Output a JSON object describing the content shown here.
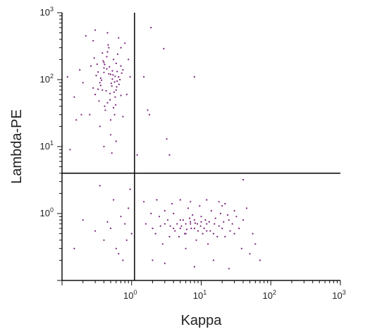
{
  "chart_data": {
    "type": "scatter",
    "title": "",
    "xlabel": "Kappa",
    "ylabel": "Lambda-PE",
    "x_scale": "log",
    "y_scale": "log",
    "xlim": [
      0.1,
      1000
    ],
    "ylim": [
      0.1,
      1000
    ],
    "x_ticks": [
      {
        "value": 1,
        "base": "10",
        "exp": "0"
      },
      {
        "value": 10,
        "base": "10",
        "exp": "1"
      },
      {
        "value": 100,
        "base": "10",
        "exp": "2"
      },
      {
        "value": 1000,
        "base": "10",
        "exp": "3"
      }
    ],
    "y_ticks": [
      {
        "value": 1,
        "base": "10",
        "exp": "0"
      },
      {
        "value": 10,
        "base": "10",
        "exp": "1"
      },
      {
        "value": 100,
        "base": "10",
        "exp": "2"
      },
      {
        "value": 1000,
        "base": "10",
        "exp": "3"
      }
    ],
    "quadrant_gate": {
      "x": 1.1,
      "y": 4
    },
    "grid": false,
    "legend": "none",
    "point_color": "#7a1f7a",
    "series": [
      {
        "points": [
          [
            0.35,
            90
          ],
          [
            0.5,
            120
          ],
          [
            0.6,
            70
          ],
          [
            0.4,
            150
          ],
          [
            0.55,
            200
          ],
          [
            0.3,
            60
          ],
          [
            0.45,
            45
          ],
          [
            0.65,
            110
          ],
          [
            0.38,
            250
          ],
          [
            0.52,
            80
          ],
          [
            0.42,
            35
          ],
          [
            0.7,
            160
          ],
          [
            0.33,
            130
          ],
          [
            0.58,
            55
          ],
          [
            0.47,
            300
          ],
          [
            0.62,
            95
          ],
          [
            0.28,
            75
          ],
          [
            0.5,
            25
          ],
          [
            0.75,
            140
          ],
          [
            0.4,
            180
          ],
          [
            0.36,
            105
          ],
          [
            0.56,
            65
          ],
          [
            0.44,
            220
          ],
          [
            0.66,
            85
          ],
          [
            0.31,
            115
          ],
          [
            0.49,
            50
          ],
          [
            0.6,
            175
          ],
          [
            0.41,
            40
          ],
          [
            0.53,
            135
          ],
          [
            0.68,
            100
          ],
          [
            0.26,
            160
          ],
          [
            0.46,
            330
          ],
          [
            0.57,
            30
          ],
          [
            0.39,
            190
          ],
          [
            0.72,
            125
          ],
          [
            0.34,
            48
          ],
          [
            0.51,
            88
          ],
          [
            0.63,
            240
          ],
          [
            0.43,
            68
          ],
          [
            0.29,
            210
          ],
          [
            0.48,
            155
          ],
          [
            0.59,
            42
          ],
          [
            0.37,
            98
          ],
          [
            0.54,
            118
          ],
          [
            0.7,
            58
          ],
          [
            0.32,
            170
          ],
          [
            0.45,
            260
          ],
          [
            0.61,
            78
          ],
          [
            0.4,
            128
          ],
          [
            0.55,
            38
          ],
          [
            0.22,
            450
          ],
          [
            0.3,
            550
          ],
          [
            0.8,
            350
          ],
          [
            0.25,
            30
          ],
          [
            0.85,
            60
          ],
          [
            0.2,
            90
          ],
          [
            0.9,
            200
          ],
          [
            0.18,
            140
          ],
          [
            0.5,
            15
          ],
          [
            0.6,
            12
          ],
          [
            0.45,
            500
          ],
          [
            0.65,
            420
          ],
          [
            0.35,
            20
          ],
          [
            0.75,
            28
          ],
          [
            0.28,
            380
          ],
          [
            0.95,
            110
          ],
          [
            0.4,
            10
          ],
          [
            0.52,
            8
          ],
          [
            0.7,
            300
          ],
          [
            0.38,
            70
          ],
          [
            0.57,
            92
          ],
          [
            0.44,
            145
          ],
          [
            0.36,
            82
          ],
          [
            0.62,
            132
          ],
          [
            0.49,
            62
          ],
          [
            0.41,
            168
          ],
          [
            0.53,
            102
          ],
          [
            0.47,
            122
          ],
          [
            0.33,
            72
          ],
          [
            0.58,
            112
          ],
          [
            0.15,
            55
          ],
          [
            0.12,
            110
          ],
          [
            0.16,
            25
          ],
          [
            0.13,
            9
          ],
          [
            0.19,
            30
          ],
          [
            1.9,
            600
          ],
          [
            2.9,
            290
          ],
          [
            3.2,
            13
          ],
          [
            3.5,
            7.5
          ],
          [
            1.5,
            110
          ],
          [
            1.8,
            30
          ],
          [
            1.7,
            35
          ],
          [
            8,
            110
          ],
          [
            1.2,
            7.5
          ],
          [
            3,
            0.7
          ],
          [
            5,
            0.6
          ],
          [
            8,
            0.8
          ],
          [
            12,
            0.7
          ],
          [
            20,
            0.6
          ],
          [
            4,
            1.0
          ],
          [
            6,
            0.5
          ],
          [
            10,
            0.9
          ],
          [
            15,
            0.5
          ],
          [
            25,
            0.8
          ],
          [
            2,
            0.6
          ],
          [
            3.5,
            0.45
          ],
          [
            7,
            0.75
          ],
          [
            9,
            0.55
          ],
          [
            14,
            1.1
          ],
          [
            18,
            0.65
          ],
          [
            30,
            0.5
          ],
          [
            2.5,
            0.9
          ],
          [
            4.5,
            0.7
          ],
          [
            6.5,
            1.2
          ],
          [
            11,
            0.6
          ],
          [
            16,
            0.85
          ],
          [
            22,
            0.45
          ],
          [
            3,
            1.1
          ],
          [
            5.5,
            0.8
          ],
          [
            8.5,
            0.4
          ],
          [
            13,
            0.75
          ],
          [
            19,
            1.0
          ],
          [
            28,
            0.7
          ],
          [
            2.2,
            0.5
          ],
          [
            4.2,
            0.55
          ],
          [
            7.5,
            0.95
          ],
          [
            10.5,
            0.5
          ],
          [
            15.5,
            0.7
          ],
          [
            24,
            0.95
          ],
          [
            35,
            0.6
          ],
          [
            1.6,
            0.7
          ],
          [
            2.8,
            0.35
          ],
          [
            6,
            0.3
          ],
          [
            9.5,
            1.3
          ],
          [
            12.5,
            0.35
          ],
          [
            17,
            0.45
          ],
          [
            40,
            0.8
          ],
          [
            3.8,
            1.4
          ],
          [
            5.2,
            0.65
          ],
          [
            7.2,
            0.6
          ],
          [
            11.5,
            0.8
          ],
          [
            20,
            1.3
          ],
          [
            26,
            0.55
          ],
          [
            1.9,
            1.0
          ],
          [
            3.3,
            0.8
          ],
          [
            4.8,
            0.45
          ],
          [
            6.8,
            0.85
          ],
          [
            8.8,
            0.7
          ],
          [
            13.5,
            0.55
          ],
          [
            21,
            0.75
          ],
          [
            32,
            0.9
          ],
          [
            2.6,
            0.65
          ],
          [
            5.8,
            0.5
          ],
          [
            9.8,
            0.65
          ],
          [
            4,
            0.6
          ],
          [
            6,
            0.7
          ],
          [
            8,
            0.6
          ],
          [
            5,
            0.8
          ],
          [
            7,
            0.7
          ],
          [
            3.6,
            0.65
          ],
          [
            10,
            0.75
          ],
          [
            12,
            0.55
          ],
          [
            6.2,
            0.58
          ],
          [
            8.2,
            0.72
          ],
          [
            0.5,
            0.6
          ],
          [
            0.7,
            0.9
          ],
          [
            0.4,
            0.4
          ],
          [
            0.9,
            1.2
          ],
          [
            0.3,
            0.55
          ],
          [
            0.6,
            0.3
          ],
          [
            0.8,
            0.7
          ],
          [
            1.0,
            0.5
          ],
          [
            0.45,
            0.75
          ],
          [
            0.85,
            0.4
          ],
          [
            0.95,
            2.3
          ],
          [
            0.35,
            2.6
          ],
          [
            0.55,
            1.6
          ],
          [
            0.15,
            0.3
          ],
          [
            0.2,
            0.8
          ],
          [
            0.75,
            0.2
          ],
          [
            0.65,
            0.25
          ],
          [
            50,
            0.25
          ],
          [
            70,
            0.2
          ],
          [
            60,
            0.35
          ],
          [
            45,
            1.2
          ],
          [
            2,
            0.2
          ],
          [
            3,
            0.18
          ],
          [
            8,
            0.16
          ],
          [
            15,
            0.2
          ],
          [
            25,
            0.15
          ],
          [
            38,
            0.3
          ],
          [
            1.5,
            1.5
          ],
          [
            2.3,
            1.6
          ],
          [
            12,
            1.6
          ],
          [
            18,
            1.5
          ],
          [
            40,
            3.2
          ],
          [
            55,
            0.5
          ],
          [
            30,
            1.1
          ],
          [
            22,
            1.4
          ],
          [
            7,
            1.5
          ],
          [
            5,
            1.6
          ]
        ]
      }
    ]
  }
}
